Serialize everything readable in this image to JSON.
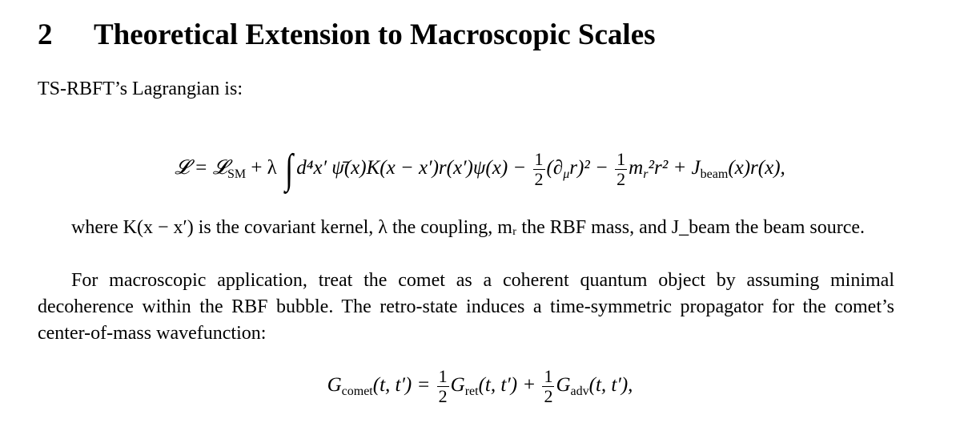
{
  "section": {
    "number": "2",
    "title": "Theoretical Extension to Macroscopic Scales"
  },
  "intro": "TS-RBFT’s Lagrangian is:",
  "eq1": {
    "lhs": "𝓛 = 𝓛",
    "lhs_sub": "SM",
    "plus_lambda": " + λ",
    "integral": "∫",
    "body": "d⁴x′ ψ̄(x)K(x − x′)r(x′)ψ(x) −",
    "frac1_num": "1",
    "frac1_den": "2",
    "term2": "(∂",
    "term2_sub": "μ",
    "term2_rest": "r)² −",
    "frac2_num": "1",
    "frac2_den": "2",
    "term3": "m",
    "term3_sub": "r",
    "term3_rest": "²r² + J",
    "term4_sub": "beam",
    "term4_rest": "(x)r(x),"
  },
  "para1": "where K(x − x′) is the covariant kernel, λ the coupling, mᵣ the RBF mass, and J_beam the beam source.",
  "para2": "For macroscopic application, treat the comet as a coherent quantum object by assuming minimal decoherence within the RBF bubble. The retro-state induces a time-symmetric propagator for the comet’s center-of-mass wavefunction:",
  "eq2": {
    "g1": "G",
    "g1_sub": "comet",
    "g1_args": "(t, t′) =",
    "frac1_num": "1",
    "frac1_den": "2",
    "g2": "G",
    "g2_sub": "ret",
    "g2_args": "(t, t′) +",
    "frac2_num": "1",
    "frac2_den": "2",
    "g3": "G",
    "g3_sub": "adv",
    "g3_args": "(t, t′),"
  }
}
